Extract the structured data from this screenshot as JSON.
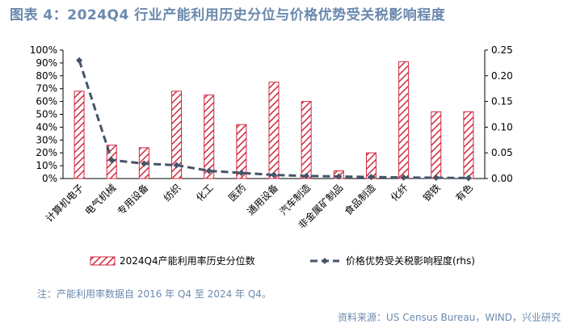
{
  "title": "图表 4：2024Q4 行业产能利用历史分位与价格优势受关税影响程度",
  "note": "注：产能利用率数据自 2016 年 Q4 至 2024 年 Q4。",
  "source": "资料来源：US Census Bureau，WIND，兴业研究",
  "colors": {
    "bar_stroke": "#d0283e",
    "line": "#44546a",
    "title": "#6a89ad"
  },
  "chart_data": {
    "type": "bar",
    "categories": [
      "计算机电子",
      "电气机械",
      "专用设备",
      "纺织",
      "化工",
      "医药",
      "通用设备",
      "汽车制造",
      "非金属矿制品",
      "食品制造",
      "化纤",
      "钢铁",
      "有色"
    ],
    "series": [
      {
        "name": "2024Q4产能利用率历史分位数",
        "type": "bar",
        "axis": "left",
        "values": [
          0.68,
          0.26,
          0.24,
          0.68,
          0.65,
          0.42,
          0.75,
          0.6,
          0.06,
          0.2,
          0.91,
          0.52,
          0.52
        ]
      },
      {
        "name": "价格优势受关税影响程度(rhs)",
        "type": "line",
        "axis": "right",
        "values": [
          0.23,
          0.036,
          0.029,
          0.026,
          0.015,
          0.011,
          0.007,
          0.005,
          0.004,
          0.003,
          0.002,
          0.0015,
          0.001
        ]
      }
    ],
    "y_left": {
      "min": 0,
      "max": 1.0,
      "ticks": [
        "0%",
        "10%",
        "20%",
        "30%",
        "40%",
        "50%",
        "60%",
        "70%",
        "80%",
        "90%",
        "100%"
      ]
    },
    "y_right": {
      "min": 0,
      "max": 0.25,
      "ticks": [
        "0.00",
        "0.05",
        "0.10",
        "0.15",
        "0.20",
        "0.25"
      ]
    },
    "grid": false,
    "legend": "bottom"
  }
}
